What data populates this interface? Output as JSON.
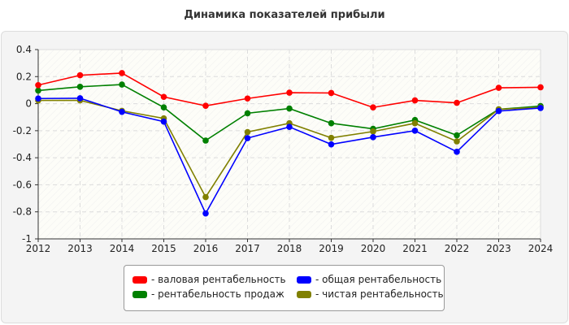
{
  "chart_data": {
    "type": "line",
    "title": "Динамика показателей прибыли",
    "xlabel": "",
    "ylabel": "",
    "x": [
      2012,
      2013,
      2014,
      2015,
      2016,
      2017,
      2018,
      2019,
      2020,
      2021,
      2022,
      2023,
      2024
    ],
    "ylim": [
      -1,
      0.4
    ],
    "yticks": [
      "0.4",
      "0.2",
      "0",
      "-0.2",
      "-0.4",
      "-0.6",
      "-0.8",
      "-1"
    ],
    "grid": true,
    "legend_position": "bottom",
    "series": [
      {
        "name": "- валовая рентабельность",
        "color": "#ff0000",
        "values": [
          0.137,
          0.21,
          0.226,
          0.05,
          -0.016,
          0.038,
          0.081,
          0.079,
          -0.028,
          0.024,
          0.006,
          0.117,
          0.121
        ]
      },
      {
        "name": "- общая рентабельность",
        "color": "#0000ff",
        "values": [
          0.038,
          0.04,
          -0.061,
          -0.133,
          -0.812,
          -0.255,
          -0.172,
          -0.301,
          -0.248,
          -0.2,
          -0.356,
          -0.055,
          -0.032
        ]
      },
      {
        "name": "- рентабельность продаж",
        "color": "#008000",
        "values": [
          0.097,
          0.125,
          0.141,
          -0.028,
          -0.273,
          -0.071,
          -0.036,
          -0.145,
          -0.186,
          -0.121,
          -0.234,
          -0.042,
          -0.018
        ]
      },
      {
        "name": "- чистая рентабельность",
        "color": "#808000",
        "values": [
          0.024,
          0.024,
          -0.053,
          -0.109,
          -0.691,
          -0.21,
          -0.145,
          -0.253,
          -0.206,
          -0.145,
          -0.279,
          -0.042,
          -0.028
        ]
      }
    ]
  }
}
